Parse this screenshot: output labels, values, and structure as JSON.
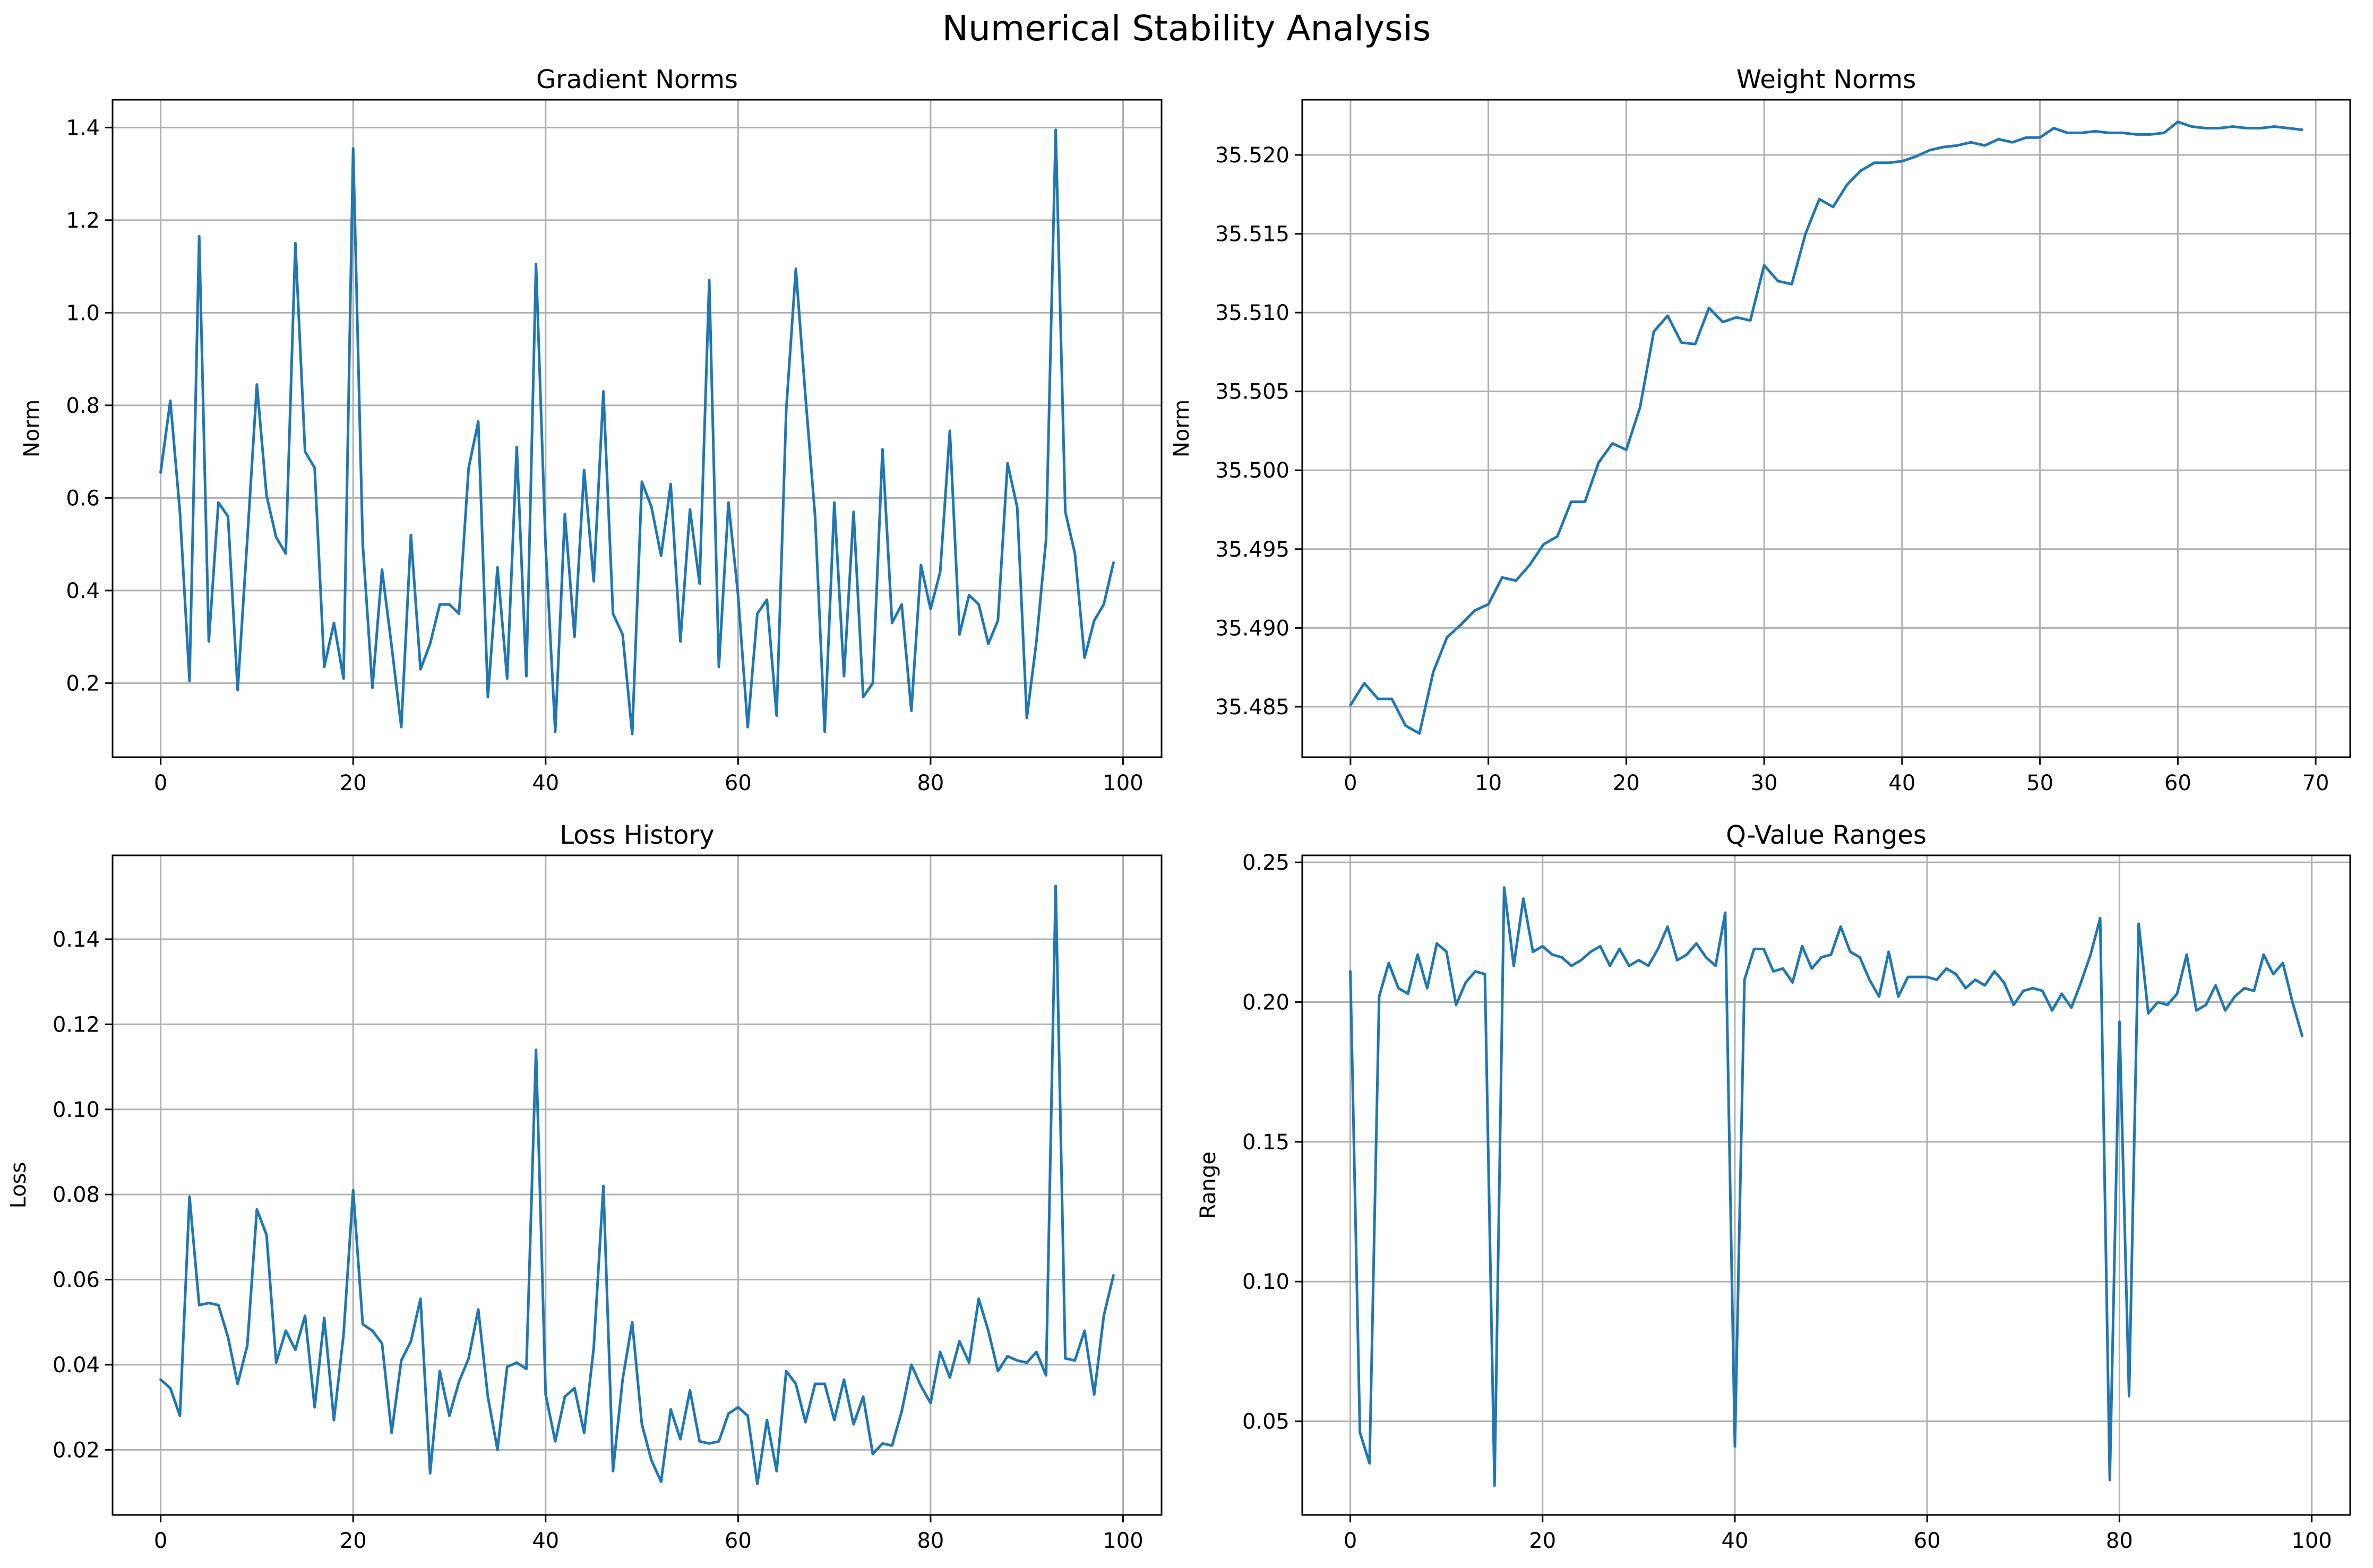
{
  "figure": {
    "title": "Numerical Stability Analysis",
    "line_color": "#1f77b4"
  },
  "chart_data": [
    {
      "type": "line",
      "title": "Gradient Norms",
      "xlabel": "",
      "ylabel": "Norm",
      "xlim": [
        -5,
        104
      ],
      "ylim": [
        0.04,
        1.46
      ],
      "xticks": [
        0,
        20,
        40,
        60,
        80,
        100
      ],
      "yticks": [
        0.2,
        0.4,
        0.6,
        0.8,
        1.0,
        1.2,
        1.4
      ],
      "yticklabels": [
        "0.2",
        "0.4",
        "0.6",
        "0.8",
        "1.0",
        "1.2",
        "1.4"
      ],
      "grid": true,
      "x_start": 0,
      "values": [
        0.655,
        0.81,
        0.57,
        0.205,
        1.165,
        0.29,
        0.59,
        0.56,
        0.185,
        0.51,
        0.845,
        0.605,
        0.515,
        0.48,
        1.15,
        0.7,
        0.665,
        0.235,
        0.33,
        0.21,
        1.355,
        0.5,
        0.19,
        0.445,
        0.28,
        0.105,
        0.52,
        0.23,
        0.285,
        0.37,
        0.37,
        0.35,
        0.665,
        0.765,
        0.17,
        0.45,
        0.21,
        0.71,
        0.215,
        1.105,
        0.495,
        0.095,
        0.565,
        0.3,
        0.66,
        0.42,
        0.83,
        0.35,
        0.305,
        0.09,
        0.635,
        0.58,
        0.475,
        0.63,
        0.29,
        0.575,
        0.415,
        1.07,
        0.235,
        0.59,
        0.39,
        0.105,
        0.35,
        0.38,
        0.13,
        0.79,
        1.095,
        0.82,
        0.56,
        0.095,
        0.59,
        0.215,
        0.57,
        0.17,
        0.2,
        0.705,
        0.33,
        0.37,
        0.14,
        0.455,
        0.36,
        0.44,
        0.745,
        0.305,
        0.39,
        0.37,
        0.285,
        0.335,
        0.675,
        0.58,
        0.125,
        0.29,
        0.51,
        1.395,
        0.57,
        0.48,
        0.255,
        0.335,
        0.37,
        0.46
      ]
    },
    {
      "type": "line",
      "title": "Weight Norms",
      "xlabel": "",
      "ylabel": "Norm",
      "xlim": [
        -3.5,
        72.5
      ],
      "ylim": [
        35.4818,
        35.5235
      ],
      "xticks": [
        0,
        10,
        20,
        30,
        40,
        50,
        60,
        70
      ],
      "yticks": [
        35.485,
        35.49,
        35.495,
        35.5,
        35.505,
        35.51,
        35.515,
        35.52
      ],
      "yticklabels": [
        "35.485",
        "35.490",
        "35.495",
        "35.500",
        "35.505",
        "35.510",
        "35.515",
        "35.520"
      ],
      "grid": true,
      "x_start": 0,
      "values": [
        35.4851,
        35.4865,
        35.4855,
        35.4855,
        35.4838,
        35.4833,
        35.4872,
        35.4894,
        35.4902,
        35.4911,
        35.4915,
        35.4932,
        35.493,
        35.494,
        35.4953,
        35.4958,
        35.498,
        35.498,
        35.5005,
        35.5017,
        35.5013,
        35.504,
        35.5088,
        35.5098,
        35.5081,
        35.508,
        35.5103,
        35.5094,
        35.5097,
        35.5095,
        35.513,
        35.512,
        35.5118,
        35.515,
        35.5172,
        35.5167,
        35.5181,
        35.519,
        35.5195,
        35.5195,
        35.5196,
        35.5199,
        35.5203,
        35.5205,
        35.5206,
        35.5208,
        35.5206,
        35.521,
        35.5208,
        35.5211,
        35.5211,
        35.5217,
        35.5214,
        35.5214,
        35.5215,
        35.5214,
        35.5214,
        35.5213,
        35.5213,
        35.5214,
        35.5221,
        35.5218,
        35.5217,
        35.5217,
        35.5218,
        35.5217,
        35.5217,
        35.5218,
        35.5217,
        35.5216
      ]
    },
    {
      "type": "line",
      "title": "Loss History",
      "xlabel": "",
      "ylabel": "Loss",
      "xlim": [
        -5,
        104
      ],
      "ylim": [
        0.0047,
        0.1597
      ],
      "xticks": [
        0,
        20,
        40,
        60,
        80,
        100
      ],
      "yticks": [
        0.02,
        0.04,
        0.06,
        0.08,
        0.1,
        0.12,
        0.14
      ],
      "yticklabels": [
        "0.02",
        "0.04",
        "0.06",
        "0.08",
        "0.10",
        "0.12",
        "0.14"
      ],
      "grid": true,
      "x_start": 0,
      "values": [
        0.0365,
        0.0345,
        0.028,
        0.0795,
        0.054,
        0.0545,
        0.054,
        0.0465,
        0.0355,
        0.0445,
        0.0765,
        0.0705,
        0.0405,
        0.048,
        0.0435,
        0.0515,
        0.03,
        0.051,
        0.027,
        0.047,
        0.081,
        0.0495,
        0.048,
        0.045,
        0.024,
        0.041,
        0.0455,
        0.0555,
        0.0145,
        0.0385,
        0.028,
        0.036,
        0.0415,
        0.053,
        0.0325,
        0.02,
        0.0395,
        0.0405,
        0.039,
        0.114,
        0.033,
        0.022,
        0.0325,
        0.0345,
        0.024,
        0.044,
        0.082,
        0.015,
        0.0365,
        0.05,
        0.026,
        0.0175,
        0.0125,
        0.0295,
        0.0225,
        0.034,
        0.022,
        0.0215,
        0.022,
        0.0285,
        0.03,
        0.028,
        0.012,
        0.027,
        0.015,
        0.0385,
        0.0355,
        0.0265,
        0.0355,
        0.0355,
        0.027,
        0.0365,
        0.026,
        0.0325,
        0.019,
        0.0215,
        0.021,
        0.029,
        0.04,
        0.035,
        0.031,
        0.043,
        0.037,
        0.0455,
        0.0405,
        0.0555,
        0.048,
        0.0385,
        0.042,
        0.041,
        0.0405,
        0.043,
        0.0375,
        0.1525,
        0.0415,
        0.041,
        0.048,
        0.033,
        0.0515,
        0.061
      ]
    },
    {
      "type": "line",
      "title": "Q-Value Ranges",
      "xlabel": "",
      "ylabel": "Range",
      "xlim": [
        -5,
        104
      ],
      "ylim": [
        0.0165,
        0.2525
      ],
      "xticks": [
        0,
        20,
        40,
        60,
        80,
        100
      ],
      "yticks": [
        0.05,
        0.1,
        0.15,
        0.2,
        0.25
      ],
      "yticklabels": [
        "0.05",
        "0.10",
        "0.15",
        "0.20",
        "0.25"
      ],
      "grid": true,
      "x_start": 0,
      "values": [
        0.211,
        0.046,
        0.035,
        0.202,
        0.214,
        0.205,
        0.203,
        0.217,
        0.205,
        0.221,
        0.218,
        0.199,
        0.207,
        0.211,
        0.21,
        0.027,
        0.241,
        0.213,
        0.237,
        0.218,
        0.22,
        0.217,
        0.216,
        0.213,
        0.215,
        0.218,
        0.22,
        0.213,
        0.219,
        0.213,
        0.215,
        0.213,
        0.219,
        0.227,
        0.215,
        0.217,
        0.221,
        0.216,
        0.213,
        0.232,
        0.041,
        0.208,
        0.219,
        0.219,
        0.211,
        0.212,
        0.207,
        0.22,
        0.212,
        0.216,
        0.217,
        0.227,
        0.218,
        0.216,
        0.208,
        0.202,
        0.218,
        0.202,
        0.209,
        0.209,
        0.209,
        0.208,
        0.212,
        0.21,
        0.205,
        0.208,
        0.206,
        0.211,
        0.207,
        0.199,
        0.204,
        0.205,
        0.204,
        0.197,
        0.203,
        0.198,
        0.207,
        0.217,
        0.23,
        0.029,
        0.193,
        0.059,
        0.228,
        0.196,
        0.2,
        0.199,
        0.203,
        0.217,
        0.197,
        0.199,
        0.206,
        0.197,
        0.202,
        0.205,
        0.204,
        0.217,
        0.21,
        0.214,
        0.2,
        0.188
      ]
    }
  ]
}
